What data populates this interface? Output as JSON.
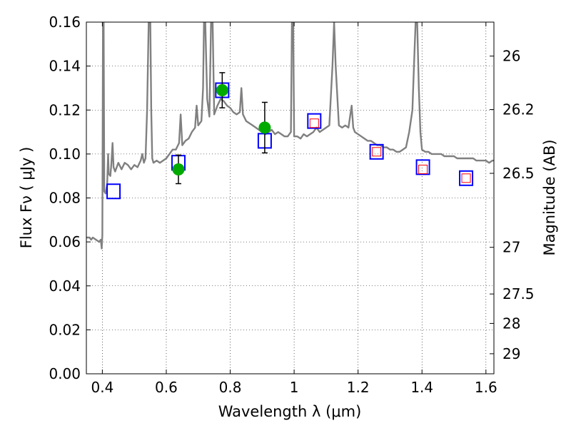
{
  "chart_data": {
    "type": "scatter",
    "xlabel": "Wavelength  λ (μm)",
    "ylabel": "Flux  Fν  ( μJy )",
    "y2label": "Magnitude (AB)",
    "xlim": [
      0.35,
      1.625
    ],
    "ylim": [
      0.0,
      0.16
    ],
    "x_ticks": [
      0.4,
      0.6,
      0.8,
      1.0,
      1.2,
      1.4,
      1.6
    ],
    "x_tick_labels": [
      "0.4",
      "0.6",
      "0.8",
      "1",
      "1.2",
      "1.4",
      "1.6"
    ],
    "y_ticks": [
      0.0,
      0.02,
      0.04,
      0.06,
      0.08,
      0.1,
      0.12,
      0.14,
      0.16
    ],
    "y_tick_labels": [
      "0.00",
      "0.02",
      "0.04",
      "0.06",
      "0.08",
      "0.10",
      "0.12",
      "0.14",
      "0.16"
    ],
    "y2_tick_labels": [
      "26",
      "26.2",
      "26.5",
      "27",
      "27.5",
      "28",
      "29"
    ],
    "grid": true,
    "series": [
      {
        "style": "line",
        "color": "#808080",
        "points": [
          [
            0.35,
            0.062
          ],
          [
            0.36,
            0.062
          ],
          [
            0.365,
            0.061
          ],
          [
            0.37,
            0.062
          ],
          [
            0.38,
            0.061
          ],
          [
            0.39,
            0.06
          ],
          [
            0.395,
            0.061
          ],
          [
            0.398,
            0.057
          ],
          [
            0.4,
            0.063
          ],
          [
            0.402,
            0.16
          ],
          [
            0.404,
            0.16
          ],
          [
            0.406,
            0.083
          ],
          [
            0.41,
            0.082
          ],
          [
            0.415,
            0.086
          ],
          [
            0.418,
            0.1
          ],
          [
            0.42,
            0.091
          ],
          [
            0.425,
            0.09
          ],
          [
            0.428,
            0.095
          ],
          [
            0.432,
            0.105
          ],
          [
            0.435,
            0.094
          ],
          [
            0.44,
            0.092
          ],
          [
            0.45,
            0.096
          ],
          [
            0.46,
            0.093
          ],
          [
            0.47,
            0.096
          ],
          [
            0.48,
            0.095
          ],
          [
            0.49,
            0.093
          ],
          [
            0.5,
            0.095
          ],
          [
            0.51,
            0.094
          ],
          [
            0.52,
            0.097
          ],
          [
            0.525,
            0.1
          ],
          [
            0.53,
            0.096
          ],
          [
            0.535,
            0.098
          ],
          [
            0.54,
            0.12
          ],
          [
            0.545,
            0.16
          ],
          [
            0.55,
            0.16
          ],
          [
            0.553,
            0.12
          ],
          [
            0.556,
            0.098
          ],
          [
            0.56,
            0.096
          ],
          [
            0.57,
            0.097
          ],
          [
            0.58,
            0.096
          ],
          [
            0.59,
            0.097
          ],
          [
            0.6,
            0.098
          ],
          [
            0.61,
            0.1
          ],
          [
            0.62,
            0.102
          ],
          [
            0.63,
            0.102
          ],
          [
            0.64,
            0.105
          ],
          [
            0.645,
            0.118
          ],
          [
            0.65,
            0.104
          ],
          [
            0.66,
            0.106
          ],
          [
            0.67,
            0.107
          ],
          [
            0.68,
            0.11
          ],
          [
            0.69,
            0.112
          ],
          [
            0.695,
            0.122
          ],
          [
            0.7,
            0.113
          ],
          [
            0.71,
            0.115
          ],
          [
            0.715,
            0.13
          ],
          [
            0.718,
            0.16
          ],
          [
            0.722,
            0.16
          ],
          [
            0.728,
            0.125
          ],
          [
            0.735,
            0.117
          ],
          [
            0.74,
            0.16
          ],
          [
            0.745,
            0.16
          ],
          [
            0.75,
            0.118
          ],
          [
            0.76,
            0.122
          ],
          [
            0.77,
            0.125
          ],
          [
            0.78,
            0.124
          ],
          [
            0.79,
            0.122
          ],
          [
            0.8,
            0.121
          ],
          [
            0.81,
            0.119
          ],
          [
            0.82,
            0.118
          ],
          [
            0.83,
            0.119
          ],
          [
            0.835,
            0.13
          ],
          [
            0.84,
            0.118
          ],
          [
            0.85,
            0.115
          ],
          [
            0.86,
            0.114
          ],
          [
            0.87,
            0.113
          ],
          [
            0.88,
            0.112
          ],
          [
            0.89,
            0.111
          ],
          [
            0.9,
            0.11
          ],
          [
            0.91,
            0.109
          ],
          [
            0.92,
            0.11
          ],
          [
            0.93,
            0.111
          ],
          [
            0.94,
            0.109
          ],
          [
            0.95,
            0.11
          ],
          [
            0.96,
            0.109
          ],
          [
            0.97,
            0.108
          ],
          [
            0.98,
            0.108
          ],
          [
            0.99,
            0.11
          ],
          [
            0.993,
            0.16
          ],
          [
            0.997,
            0.16
          ],
          [
            1.0,
            0.108
          ],
          [
            1.01,
            0.108
          ],
          [
            1.02,
            0.107
          ],
          [
            1.03,
            0.109
          ],
          [
            1.04,
            0.108
          ],
          [
            1.05,
            0.109
          ],
          [
            1.06,
            0.11
          ],
          [
            1.07,
            0.112
          ],
          [
            1.08,
            0.11
          ],
          [
            1.09,
            0.111
          ],
          [
            1.1,
            0.112
          ],
          [
            1.11,
            0.113
          ],
          [
            1.12,
            0.14
          ],
          [
            1.125,
            0.16
          ],
          [
            1.13,
            0.14
          ],
          [
            1.14,
            0.113
          ],
          [
            1.15,
            0.112
          ],
          [
            1.16,
            0.113
          ],
          [
            1.17,
            0.112
          ],
          [
            1.18,
            0.122
          ],
          [
            1.185,
            0.112
          ],
          [
            1.19,
            0.11
          ],
          [
            1.2,
            0.109
          ],
          [
            1.21,
            0.108
          ],
          [
            1.22,
            0.107
          ],
          [
            1.23,
            0.106
          ],
          [
            1.24,
            0.106
          ],
          [
            1.25,
            0.105
          ],
          [
            1.26,
            0.104
          ],
          [
            1.27,
            0.104
          ],
          [
            1.28,
            0.103
          ],
          [
            1.29,
            0.103
          ],
          [
            1.3,
            0.102
          ],
          [
            1.31,
            0.102
          ],
          [
            1.32,
            0.101
          ],
          [
            1.33,
            0.101
          ],
          [
            1.34,
            0.102
          ],
          [
            1.35,
            0.103
          ],
          [
            1.36,
            0.11
          ],
          [
            1.37,
            0.12
          ],
          [
            1.375,
            0.14
          ],
          [
            1.38,
            0.16
          ],
          [
            1.385,
            0.16
          ],
          [
            1.39,
            0.13
          ],
          [
            1.395,
            0.11
          ],
          [
            1.4,
            0.102
          ],
          [
            1.41,
            0.101
          ],
          [
            1.42,
            0.101
          ],
          [
            1.43,
            0.1
          ],
          [
            1.44,
            0.1
          ],
          [
            1.45,
            0.1
          ],
          [
            1.46,
            0.1
          ],
          [
            1.47,
            0.099
          ],
          [
            1.48,
            0.099
          ],
          [
            1.49,
            0.099
          ],
          [
            1.5,
            0.099
          ],
          [
            1.51,
            0.098
          ],
          [
            1.52,
            0.098
          ],
          [
            1.53,
            0.098
          ],
          [
            1.54,
            0.098
          ],
          [
            1.55,
            0.098
          ],
          [
            1.56,
            0.098
          ],
          [
            1.57,
            0.097
          ],
          [
            1.58,
            0.097
          ],
          [
            1.59,
            0.097
          ],
          [
            1.6,
            0.097
          ],
          [
            1.61,
            0.096
          ],
          [
            1.62,
            0.097
          ],
          [
            1.625,
            0.097
          ]
        ]
      },
      {
        "style": "open-square",
        "color": "#0000ff",
        "points": [
          [
            0.435,
            0.083
          ],
          [
            0.638,
            0.096
          ],
          [
            0.775,
            0.129
          ],
          [
            0.908,
            0.106
          ],
          [
            1.063,
            0.115
          ],
          [
            1.258,
            0.101
          ],
          [
            1.403,
            0.094
          ],
          [
            1.538,
            0.089
          ]
        ]
      },
      {
        "style": "small-open-square",
        "color": "#ff0000",
        "points": [
          [
            1.063,
            0.114
          ],
          [
            1.258,
            0.101
          ],
          [
            1.403,
            0.093
          ],
          [
            1.538,
            0.089
          ]
        ]
      },
      {
        "style": "filled-circle",
        "color": "#00aa00",
        "points": [
          [
            0.638,
            0.093,
            0.0065
          ],
          [
            0.775,
            0.129,
            0.008
          ],
          [
            0.908,
            0.112,
            0.0115
          ]
        ]
      }
    ]
  }
}
